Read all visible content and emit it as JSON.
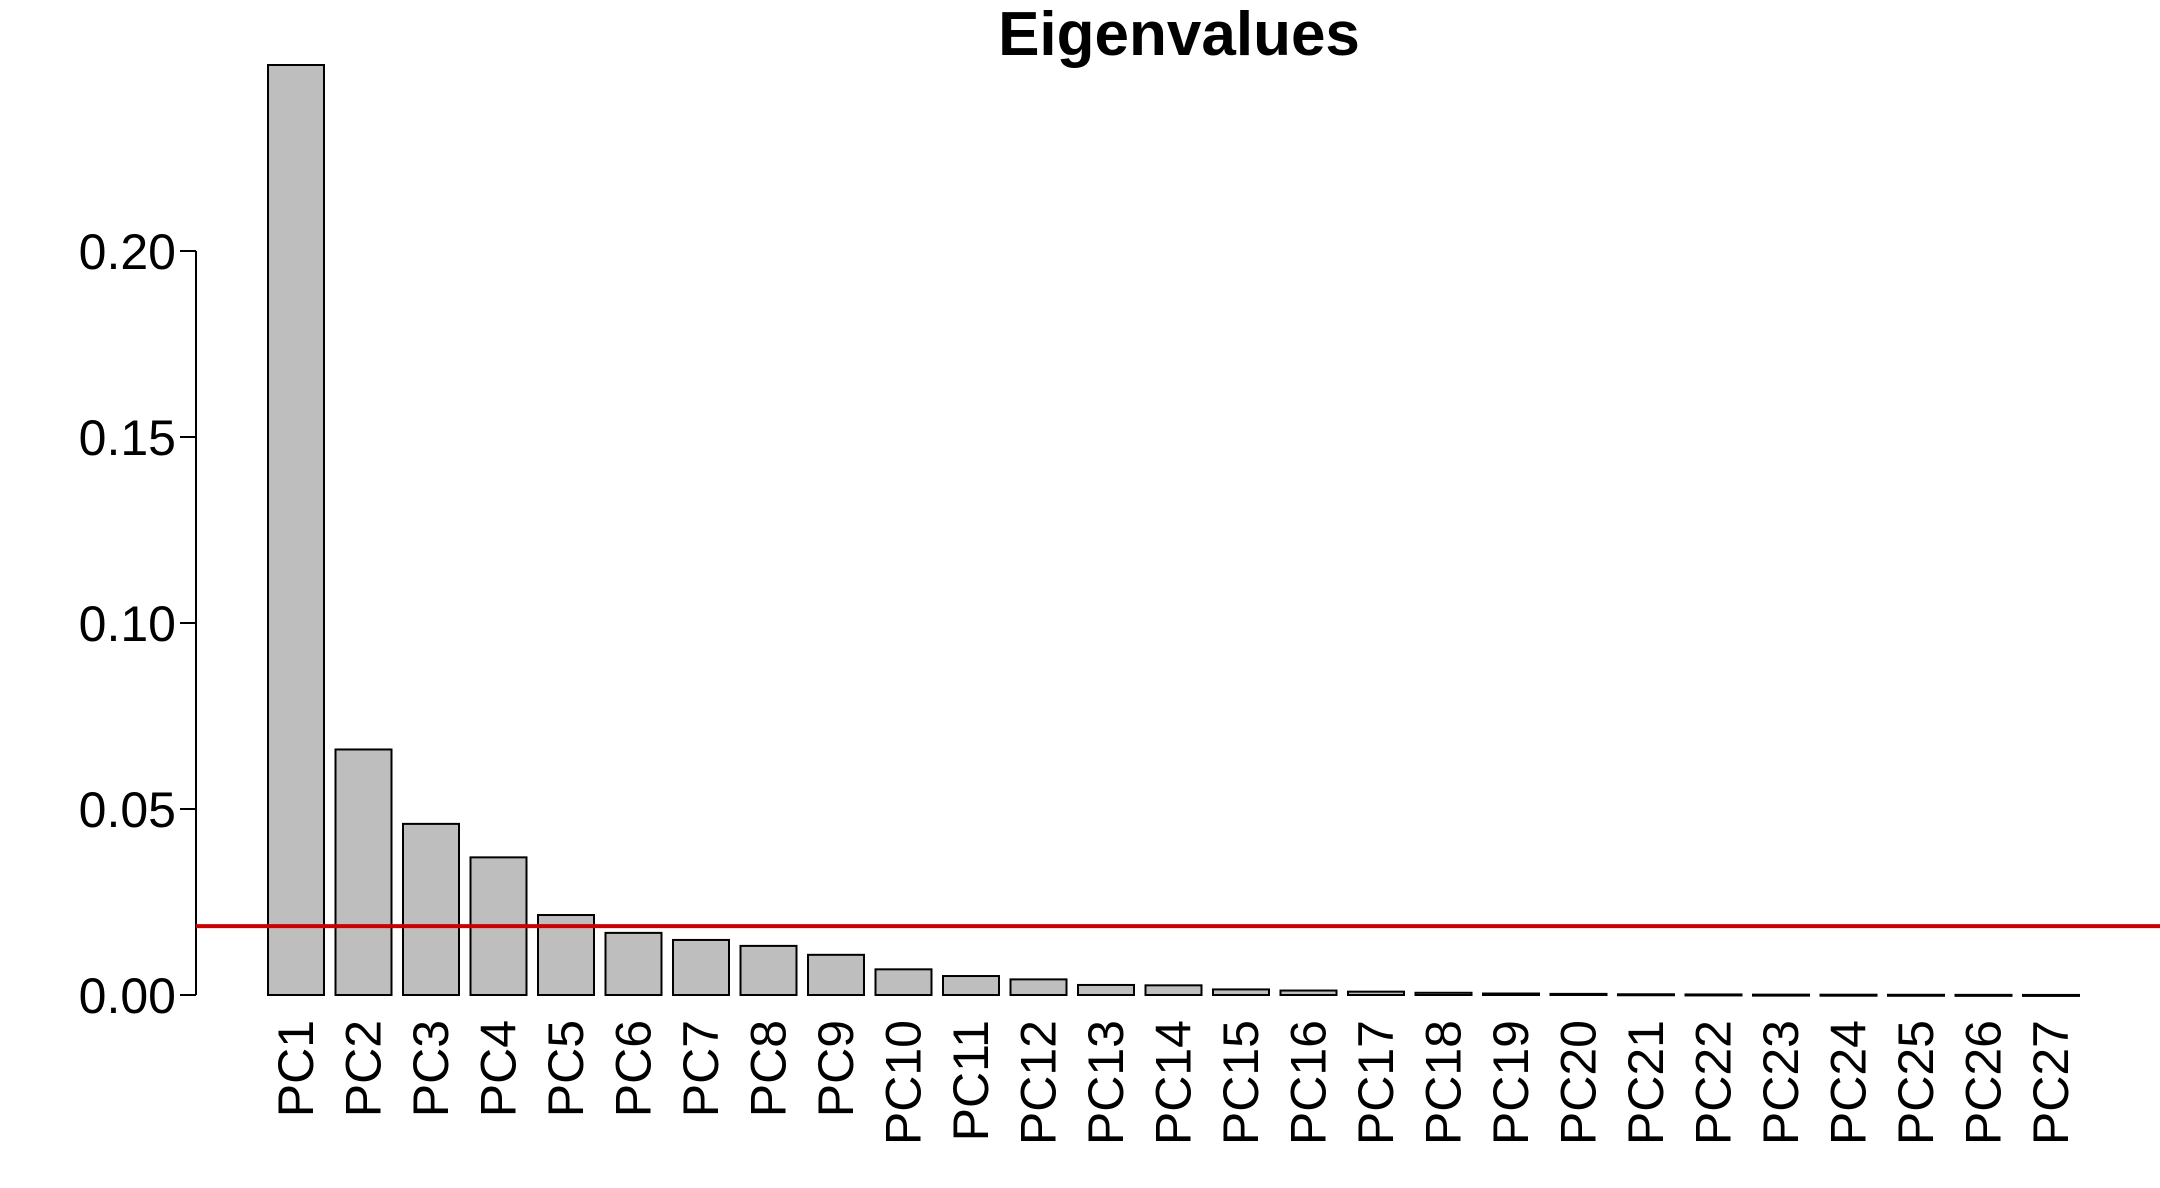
{
  "chart_data": {
    "type": "bar",
    "title": "Eigenvalues",
    "xlabel": "",
    "ylabel": "",
    "categories": [
      "PC1",
      "PC2",
      "PC3",
      "PC4",
      "PC5",
      "PC6",
      "PC7",
      "PC8",
      "PC9",
      "PC10",
      "PC11",
      "PC12",
      "PC13",
      "PC14",
      "PC15",
      "PC16",
      "PC17",
      "PC18",
      "PC19",
      "PC20",
      "PC21",
      "PC22",
      "PC23",
      "PC24",
      "PC25",
      "PC26",
      "PC27"
    ],
    "values": [
      0.25,
      0.066,
      0.046,
      0.037,
      0.0215,
      0.0167,
      0.0148,
      0.0132,
      0.0108,
      0.0069,
      0.0051,
      0.0042,
      0.0027,
      0.0026,
      0.0015,
      0.0012,
      0.0009,
      0.0006,
      0.0004,
      0.0003,
      0.0002,
      0.00015,
      0.0001,
      8e-05,
      6e-05,
      4e-05,
      2e-05
    ],
    "yticks": [
      0.0,
      0.05,
      0.1,
      0.15,
      0.2
    ],
    "ytick_labels": [
      "0.00",
      "0.05",
      "0.10",
      "0.15",
      "0.20"
    ],
    "ylim": [
      0,
      0.25
    ],
    "reference_line": 0.0185,
    "bar_color": "#bebebe",
    "bar_edge_color": "#000000",
    "reference_line_color": "#cc0000",
    "grid": false,
    "legend": "none"
  }
}
